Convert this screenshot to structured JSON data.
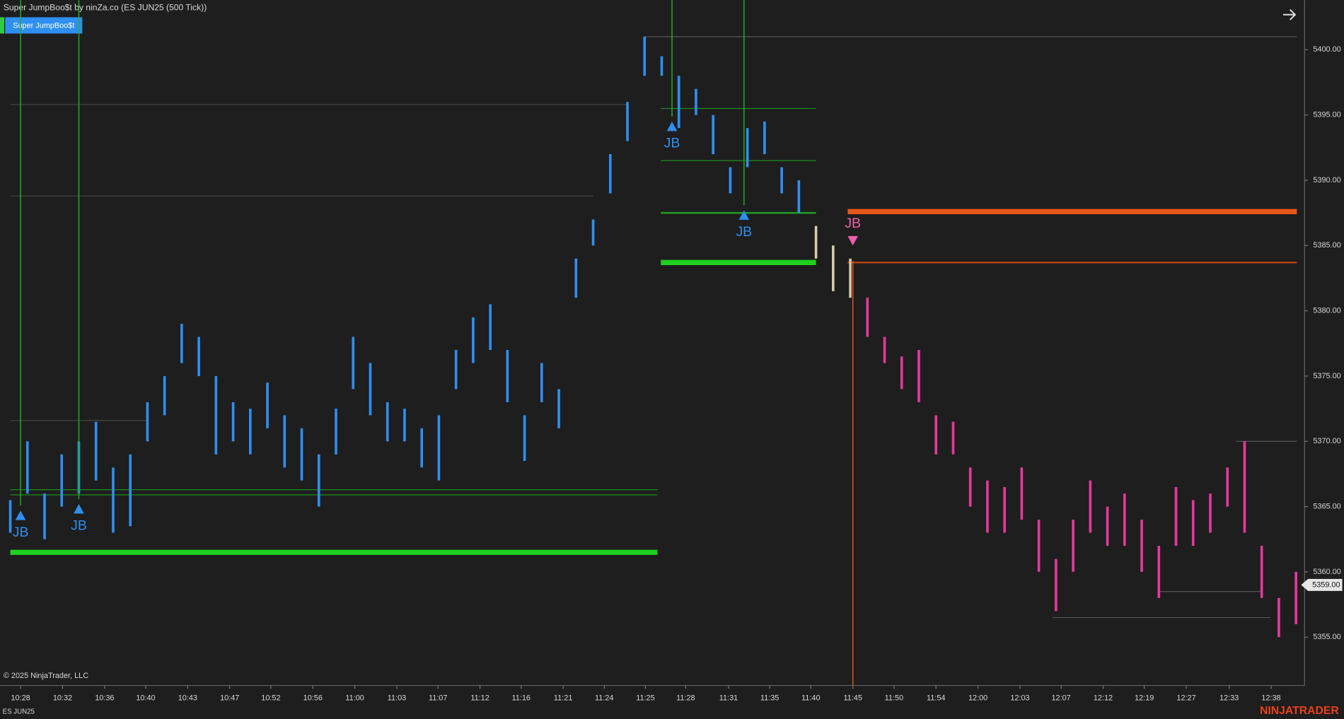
{
  "header": {
    "title": "Super JumpBoo$t by ninZa.co (ES JUN25 (500 Tick))",
    "indicator_button": "Super JumpBoo$t"
  },
  "chart_data": {
    "type": "ohlc",
    "xlim": [
      0,
      75
    ],
    "ylim": [
      5351.3,
      5403.8
    ],
    "yticks": [
      {
        "value": 5355,
        "label": "5355.00"
      },
      {
        "value": 5360,
        "label": "5360.00"
      },
      {
        "value": 5365,
        "label": "5365.00"
      },
      {
        "value": 5370,
        "label": "5370.00"
      },
      {
        "value": 5375,
        "label": "5375.00"
      },
      {
        "value": 5380,
        "label": "5380.00"
      },
      {
        "value": 5385,
        "label": "5385.00"
      },
      {
        "value": 5390,
        "label": "5390.00"
      },
      {
        "value": 5395,
        "label": "5395.00"
      },
      {
        "value": 5400,
        "label": "5400.00"
      }
    ],
    "xticks": [
      {
        "value": 0.6,
        "label": "10:28"
      },
      {
        "value": 3.05,
        "label": "10:32"
      },
      {
        "value": 5.5,
        "label": "10:36"
      },
      {
        "value": 7.9,
        "label": "10:40"
      },
      {
        "value": 10.35,
        "label": "10:43"
      },
      {
        "value": 12.8,
        "label": "10:47"
      },
      {
        "value": 15.2,
        "label": "10:52"
      },
      {
        "value": 17.65,
        "label": "10:56"
      },
      {
        "value": 20.1,
        "label": "11:00"
      },
      {
        "value": 22.55,
        "label": "11:03"
      },
      {
        "value": 24.95,
        "label": "11:07"
      },
      {
        "value": 27.4,
        "label": "11:12"
      },
      {
        "value": 29.8,
        "label": "11:16"
      },
      {
        "value": 32.25,
        "label": "11:21"
      },
      {
        "value": 34.65,
        "label": "11:24"
      },
      {
        "value": 37.05,
        "label": "11:25"
      },
      {
        "value": 39.4,
        "label": "11:28"
      },
      {
        "value": 41.9,
        "label": "11:31"
      },
      {
        "value": 44.3,
        "label": "11:35"
      },
      {
        "value": 46.7,
        "label": "11:40"
      },
      {
        "value": 49.15,
        "label": "11:45"
      },
      {
        "value": 51.55,
        "label": "11:50"
      },
      {
        "value": 54,
        "label": "11:54"
      },
      {
        "value": 56.45,
        "label": "12:00"
      },
      {
        "value": 58.9,
        "label": "12:03"
      },
      {
        "value": 61.3,
        "label": "12:07"
      },
      {
        "value": 63.75,
        "label": "12:12"
      },
      {
        "value": 66.15,
        "label": "12:19"
      },
      {
        "value": 68.6,
        "label": "12:27"
      },
      {
        "value": 71.1,
        "label": "12:33"
      },
      {
        "value": 73.55,
        "label": "12:38"
      }
    ],
    "series": [
      {
        "color": "#2e8ff0",
        "x": [
          0,
          1,
          2,
          3,
          4,
          5,
          6,
          7,
          8,
          9,
          10,
          11,
          12,
          13,
          14,
          15,
          16,
          17,
          18,
          19,
          20,
          21,
          22,
          23,
          24,
          25,
          26,
          27,
          28,
          29,
          30,
          31,
          32,
          33,
          34,
          35,
          36,
          37,
          38,
          39,
          40,
          41,
          42,
          43,
          44,
          45,
          46
        ],
        "high": [
          5365.5,
          5370,
          5366,
          5369,
          5370,
          5371.5,
          5368,
          5369,
          5373,
          5375,
          5379,
          5378,
          5375,
          5373,
          5372.5,
          5374.5,
          5372,
          5371,
          5369,
          5372.5,
          5378,
          5376,
          5373,
          5372.5,
          5371,
          5372,
          5377,
          5379.5,
          5380.5,
          5377,
          5372,
          5376,
          5374,
          5384,
          5387,
          5392,
          5396,
          5401,
          5399.5,
          5398,
          5397,
          5395,
          5391,
          5394,
          5394.5,
          5391,
          5390
        ],
        "low": [
          5363,
          5366,
          5362.5,
          5365,
          5366,
          5367,
          5363,
          5363.5,
          5370,
          5372,
          5376,
          5375,
          5369,
          5370,
          5369,
          5371,
          5368,
          5367,
          5365,
          5369,
          5374,
          5372,
          5370,
          5370,
          5368,
          5367,
          5374,
          5376,
          5377,
          5373,
          5368.5,
          5373,
          5371,
          5381,
          5385,
          5389,
          5393,
          5398,
          5398,
          5394,
          5395,
          5392,
          5389,
          5391,
          5392,
          5389,
          5387.5
        ]
      },
      {
        "color": "#d9c9a6",
        "x": [
          47,
          48,
          49
        ],
        "high": [
          5386.5,
          5385,
          5384
        ],
        "low": [
          5384,
          5381.5,
          5381
        ]
      },
      {
        "color": "#e6389c",
        "x": [
          50,
          51,
          52,
          53,
          54,
          55,
          56,
          57,
          58,
          59,
          60,
          61,
          62,
          63,
          64,
          65,
          66,
          67,
          68,
          69,
          70,
          71,
          72,
          73,
          74,
          75
        ],
        "high": [
          5381,
          5378,
          5376.5,
          5377,
          5372,
          5371.5,
          5368,
          5367,
          5366.5,
          5368,
          5364,
          5361,
          5364,
          5367,
          5365,
          5366,
          5364,
          5362,
          5366.5,
          5365.5,
          5366,
          5368,
          5370,
          5362,
          5358,
          5360
        ],
        "low": [
          5378,
          5376,
          5374,
          5373,
          5369,
          5369,
          5365,
          5363,
          5363,
          5364,
          5360,
          5357,
          5360,
          5363,
          5362,
          5362,
          5360,
          5358,
          5362,
          5362,
          5363,
          5365,
          5363,
          5358,
          5355,
          5356
        ]
      }
    ],
    "levels": [
      {
        "price": 5361.5,
        "from": 0,
        "to": 37.75,
        "color": "#1fd11f",
        "width": 6
      },
      {
        "price": 5366.3,
        "from": 0,
        "to": 37.75,
        "color": "#1f8f1f",
        "width": 1
      },
      {
        "price": 5365.9,
        "from": 0,
        "to": 37.75,
        "color": "#1f8f1f",
        "width": 1
      },
      {
        "price": 5383.7,
        "from": 37.95,
        "to": 47,
        "color": "#1fd11f",
        "width": 6
      },
      {
        "price": 5387.5,
        "from": 37.95,
        "to": 47,
        "color": "#1fa01f",
        "width": 2
      },
      {
        "price": 5391.5,
        "from": 37.95,
        "to": 47,
        "color": "#1f8f1f",
        "width": 1
      },
      {
        "price": 5395.5,
        "from": 37.95,
        "to": 47,
        "color": "#1f8f1f",
        "width": 1
      },
      {
        "price": 5387.6,
        "from": 48.85,
        "to": 75.05,
        "color": "#e8561a",
        "width": 6
      },
      {
        "price": 5383.7,
        "from": 48.85,
        "to": 75.05,
        "color": "#b8431a",
        "width": 2
      },
      {
        "price": 5401,
        "from": 37,
        "to": 75.05,
        "color": "#555555",
        "width": 1
      },
      {
        "price": 5395.8,
        "from": 0,
        "to": 36,
        "color": "#444444",
        "width": 1
      },
      {
        "price": 5388.8,
        "from": 0,
        "to": 34,
        "color": "#444444",
        "width": 1
      },
      {
        "price": 5371.6,
        "from": 0,
        "to": 8,
        "color": "#444444",
        "width": 1
      },
      {
        "price": 5370,
        "from": 71.5,
        "to": 75.05,
        "color": "#555555",
        "width": 1
      },
      {
        "price": 5358.5,
        "from": 67,
        "to": 73,
        "color": "#555555",
        "width": 1
      },
      {
        "price": 5356.5,
        "from": 60.8,
        "to": 73.5,
        "color": "#555555",
        "width": 1
      }
    ],
    "signals": [
      {
        "label": "JB",
        "x": 0.6,
        "price": 5364.3,
        "direction": "up",
        "color": "#2e8ff0",
        "line_color": "#22b022"
      },
      {
        "label": "JB",
        "x": 4,
        "price": 5364.8,
        "direction": "up",
        "color": "#2e8ff0",
        "line_color": "#22b022"
      },
      {
        "label": "JB",
        "x": 38.6,
        "price": 5394.1,
        "direction": "up",
        "color": "#2e8ff0",
        "line_color": "#22b022"
      },
      {
        "label": "JB",
        "x": 42.8,
        "price": 5387.3,
        "direction": "up",
        "color": "#2e8ff0",
        "line_color": "#22b022"
      },
      {
        "label": "JB",
        "x": 49.15,
        "price": 5385.4,
        "direction": "down",
        "color": "#ee5fae",
        "line_color": "#e8561a"
      }
    ],
    "last_price": {
      "value": 5359,
      "label": "5359.00"
    }
  },
  "footer": {
    "copyright": "© 2025 NinjaTrader, LLC",
    "instrument": "ES JUN25",
    "logo": "NINJATRADER"
  }
}
